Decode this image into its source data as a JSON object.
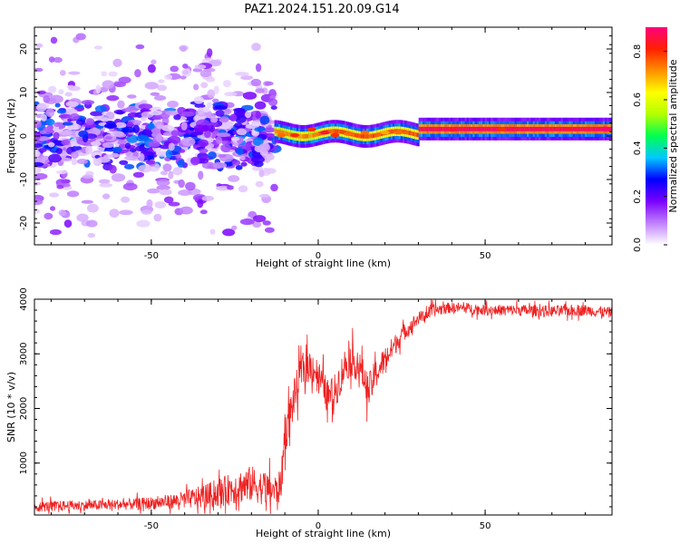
{
  "title": "PAZ1.2024.151.20.09.G14",
  "chart_data": [
    {
      "type": "heatmap",
      "xlabel": "Height of straight line (km)",
      "ylabel": "Frequency (Hz)",
      "xlim": [
        -85,
        88
      ],
      "ylim": [
        -25,
        25
      ],
      "x_ticks": [
        -50,
        0,
        50
      ],
      "y_ticks": [
        -20,
        -10,
        0,
        10,
        20
      ],
      "colorbar": {
        "label": "Normalized spectral amplitude",
        "range": [
          0.0,
          0.9
        ],
        "ticks": [
          0.0,
          0.2,
          0.4,
          0.6,
          0.8
        ],
        "colormap": [
          "#ffffff",
          "#c080ff",
          "#7a00ff",
          "#0000ff",
          "#00c8ff",
          "#00ff50",
          "#b4ff00",
          "#ffff00",
          "#ff9000",
          "#ff2000",
          "#ff0080"
        ]
      },
      "regions": [
        {
          "x_range": [
            -85,
            -13
          ],
          "frequency_spread_hz": [
            -25,
            25
          ],
          "amplitude_range": [
            0.0,
            0.3
          ],
          "description_values": "scattered noise"
        },
        {
          "x_range": [
            -13,
            88
          ],
          "center_frequency_hz": [
            0.5,
            1.8
          ],
          "amplitude_range": [
            0.4,
            0.9
          ]
        }
      ],
      "line_peaks": [
        {
          "x": -11,
          "y": 0.2,
          "amp": 0.75
        },
        {
          "x": -7,
          "y": 0.2,
          "amp": 0.8
        },
        {
          "x": -2,
          "y": 1.5,
          "amp": 0.8
        },
        {
          "x": 2,
          "y": 0.8,
          "amp": 0.85
        },
        {
          "x": 5,
          "y": 0.2,
          "amp": 0.8
        },
        {
          "x": 9,
          "y": 0.5,
          "amp": 0.75
        },
        {
          "x": 14,
          "y": 0.8,
          "amp": 0.75
        },
        {
          "x": 20,
          "y": 0.8,
          "amp": 0.7
        },
        {
          "x": 24,
          "y": 0.8,
          "amp": 0.75
        },
        {
          "x": 40,
          "y": 1.5,
          "amp": 0.85
        },
        {
          "x": 55,
          "y": 1.6,
          "amp": 0.8
        },
        {
          "x": 75,
          "y": 1.6,
          "amp": 0.85
        },
        {
          "x": 86,
          "y": 1.7,
          "amp": 0.9
        }
      ]
    },
    {
      "type": "line",
      "xlabel": "Height of straight line (km)",
      "ylabel": "SNR (10 * v/v)",
      "xlim": [
        -85,
        88
      ],
      "ylim": [
        50,
        4000
      ],
      "x_ticks": [
        -50,
        0,
        50
      ],
      "y_ticks": [
        1000,
        2000,
        3000,
        4000
      ],
      "color": "#ee2222",
      "series": [
        {
          "x": [
            -85,
            -75,
            -65,
            -55,
            -45,
            -40,
            -35,
            -30,
            -25,
            -20,
            -15,
            -12,
            -11,
            -10,
            -8,
            -5,
            -2,
            0,
            3,
            5,
            8,
            10,
            13,
            15,
            17,
            20,
            25,
            30,
            35,
            40,
            45,
            50,
            60,
            70,
            80,
            88
          ],
          "values": [
            200,
            220,
            230,
            250,
            290,
            330,
            380,
            450,
            550,
            620,
            520,
            500,
            700,
            1500,
            2000,
            2700,
            2800,
            2600,
            2200,
            2300,
            2800,
            2900,
            2700,
            2300,
            2600,
            2900,
            3350,
            3650,
            3800,
            3850,
            3830,
            3800,
            3800,
            3780,
            3800,
            3750
          ],
          "noise_amplitude": [
            120,
            120,
            120,
            130,
            160,
            200,
            260,
            320,
            380,
            420,
            380,
            350,
            400,
            450,
            450,
            400,
            380,
            380,
            400,
            420,
            400,
            380,
            350,
            400,
            350,
            300,
            200,
            150,
            150,
            120,
            120,
            120,
            130,
            130,
            130,
            130
          ]
        }
      ]
    }
  ]
}
